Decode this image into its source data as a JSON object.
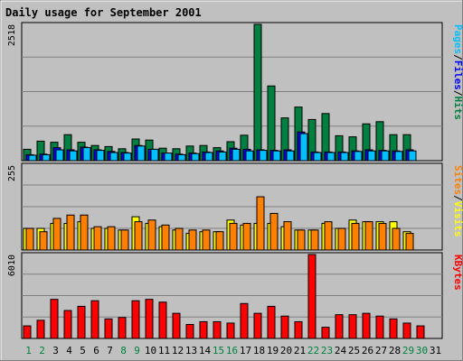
{
  "chart_data": [
    {
      "type": "bar",
      "title": "Daily usage for September 2001",
      "ytick_max_label": "2518",
      "ylim": [
        0,
        2518
      ],
      "series": [
        {
          "name": "Hits",
          "color": "#008040",
          "values": [
            210,
            360,
            340,
            480,
            340,
            280,
            260,
            220,
            400,
            380,
            230,
            220,
            270,
            280,
            240,
            350,
            470,
            2518,
            1380,
            790,
            990,
            760,
            870,
            460,
            440,
            680,
            720,
            480,
            480,
            null
          ]
        },
        {
          "name": "Files",
          "color": "#0000ff",
          "values": [
            110,
            120,
            240,
            200,
            250,
            200,
            170,
            150,
            280,
            210,
            140,
            120,
            140,
            160,
            180,
            230,
            210,
            200,
            190,
            200,
            530,
            160,
            160,
            160,
            180,
            200,
            190,
            180,
            200,
            null
          ]
        },
        {
          "name": "Pages",
          "color": "#00c0ff",
          "values": [
            100,
            110,
            200,
            180,
            240,
            190,
            150,
            140,
            270,
            210,
            140,
            110,
            130,
            150,
            160,
            210,
            180,
            190,
            180,
            180,
            500,
            150,
            150,
            150,
            170,
            180,
            180,
            170,
            180,
            null
          ]
        }
      ],
      "axis_label_parts": [
        "Pages",
        "/",
        "Files",
        "/",
        "Hits"
      ]
    },
    {
      "type": "bar",
      "ytick_max_label": "255",
      "ylim": [
        0,
        255
      ],
      "series": [
        {
          "name": "Visits",
          "color": "#ffff00",
          "values": [
            65,
            65,
            80,
            80,
            85,
            65,
            65,
            60,
            100,
            80,
            70,
            60,
            50,
            55,
            55,
            90,
            75,
            80,
            80,
            70,
            60,
            60,
            80,
            65,
            90,
            85,
            85,
            85,
            55,
            null
          ]
        },
        {
          "name": "Sites",
          "color": "#ff8000",
          "values": [
            65,
            55,
            95,
            105,
            105,
            70,
            70,
            60,
            85,
            90,
            75,
            65,
            60,
            60,
            55,
            80,
            80,
            160,
            110,
            85,
            60,
            60,
            85,
            65,
            80,
            85,
            80,
            65,
            50,
            null
          ]
        }
      ],
      "axis_label_parts": [
        "Sites",
        "/",
        "Visits"
      ]
    },
    {
      "type": "bar",
      "ytick_max_label": "6010",
      "ylim": [
        0,
        6010
      ],
      "series": [
        {
          "name": "KBytes",
          "color": "#ff0000",
          "values": [
            900,
            1300,
            2800,
            2000,
            2300,
            2700,
            1400,
            1500,
            2700,
            2800,
            2600,
            1800,
            1000,
            1200,
            1200,
            1100,
            2500,
            1800,
            2300,
            1600,
            1200,
            6010,
            800,
            1700,
            1700,
            1800,
            1600,
            1400,
            1100,
            900
          ]
        }
      ],
      "axis_label_parts": [
        "KBytes"
      ]
    }
  ],
  "days": [
    "1",
    "2",
    "3",
    "4",
    "5",
    "6",
    "7",
    "8",
    "9",
    "10",
    "11",
    "12",
    "13",
    "14",
    "15",
    "16",
    "17",
    "18",
    "19",
    "20",
    "21",
    "22",
    "23",
    "24",
    "25",
    "26",
    "27",
    "28",
    "29",
    "30",
    "31"
  ],
  "weekend_days": [
    1,
    2,
    8,
    9,
    15,
    16,
    22,
    23,
    29,
    30
  ],
  "colors": {
    "background": "#c0c0c0",
    "plot": "#c0c0c0",
    "title": "#0000ff",
    "weekday_label": "#000000",
    "weekend_label": "#008040",
    "grid": "#808080",
    "slash": "#000000"
  }
}
